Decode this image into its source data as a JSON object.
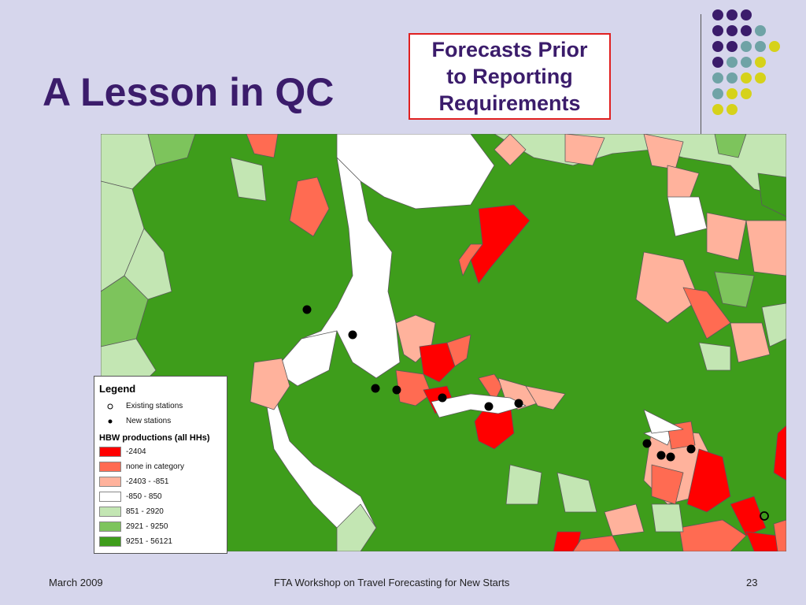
{
  "slide": {
    "title": "A Lesson in QC",
    "callout": [
      "Forecasts Prior",
      "to Reporting",
      "Requirements"
    ]
  },
  "colors": {
    "background": "#d6d6ec",
    "title": "#3b1c6b",
    "callout_border": "#e02020",
    "dot_purple": "#3b1c6b",
    "dot_teal": "#6fa3a6",
    "dot_yellow": "#d6d21a"
  },
  "legend": {
    "title": "Legend",
    "existing_label": "Existing stations",
    "new_label": "New stations",
    "section_title": "HBW productions (all HHs)",
    "classes": [
      {
        "label": "-2404",
        "color": "#ff0000"
      },
      {
        "label": "none in category",
        "color": "#ff6b52"
      },
      {
        "label": "-2403 - -851",
        "color": "#ffb29c"
      },
      {
        "label": "-850 - 850",
        "color": "#ffffff"
      },
      {
        "label": "851 - 2920",
        "color": "#c3e6b3"
      },
      {
        "label": "2921 - 9250",
        "color": "#7dc45c"
      },
      {
        "label": "9251 - 56121",
        "color": "#3e9d1b"
      }
    ]
  },
  "footer": {
    "date": "March 2009",
    "center": "FTA Workshop on Travel Forecasting for New Starts",
    "page": "23"
  }
}
